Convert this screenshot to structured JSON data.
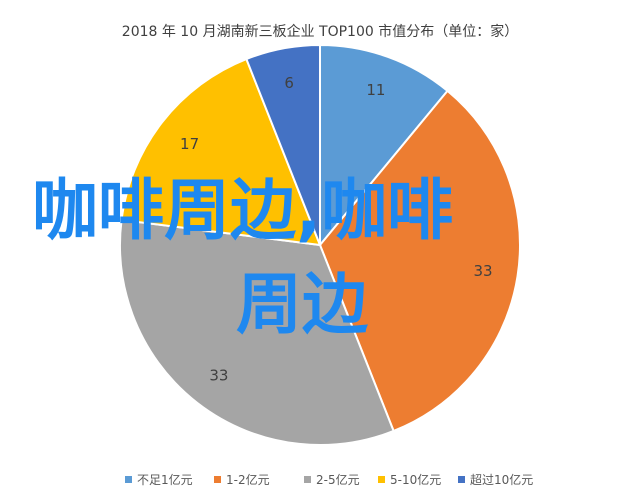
{
  "chart_data": {
    "type": "pie",
    "title": "2018 年 10 月湖南新三板企业 TOP100 市值分布（单位：家）",
    "categories": [
      "不足1亿元",
      "1-2亿元",
      "2-5亿元",
      "5-10亿元",
      "超过10亿元"
    ],
    "values": [
      11,
      33,
      33,
      17,
      6
    ],
    "colors": [
      "#5b9bd5",
      "#ed7d31",
      "#a5a5a5",
      "#ffc000",
      "#4472c4"
    ],
    "legend_position": "bottom",
    "start": "top",
    "direction": "clockwise"
  },
  "overlay": {
    "line1": "咖啡周边,咖啡",
    "line2": "周边",
    "color": "#1e88ef"
  }
}
